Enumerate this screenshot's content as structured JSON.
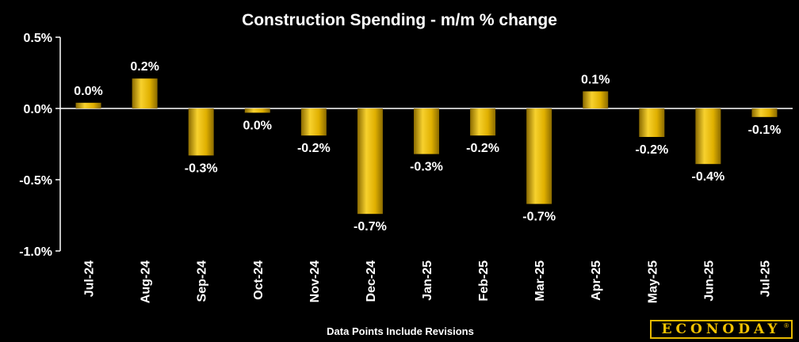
{
  "chart_data": {
    "type": "bar",
    "title": "Construction Spending - m/m % change",
    "categories": [
      "Jul-24",
      "Aug-24",
      "Sep-24",
      "Oct-24",
      "Nov-24",
      "Dec-24",
      "Jan-25",
      "Feb-25",
      "Mar-25",
      "Apr-25",
      "May-25",
      "Jun-25",
      "Jul-25"
    ],
    "values": [
      0.04,
      0.21,
      -0.33,
      -0.03,
      -0.19,
      -0.74,
      -0.32,
      -0.19,
      -0.67,
      0.12,
      -0.2,
      -0.39,
      -0.06
    ],
    "data_labels": [
      "0.0%",
      "0.2%",
      "-0.3%",
      "0.0%",
      "-0.2%",
      "-0.7%",
      "-0.3%",
      "-0.2%",
      "-0.7%",
      "0.1%",
      "-0.2%",
      "-0.4%",
      "-0.1%"
    ],
    "ylim": [
      -1.0,
      0.5
    ],
    "yticks": [
      0.5,
      0.0,
      -0.5,
      -1.0
    ],
    "ytick_labels": [
      "0.5%",
      "0.0%",
      "-0.5%",
      "-1.0%"
    ],
    "xlabel": "",
    "ylabel": "",
    "grid": false,
    "bar_color": "#f2c200",
    "bar_color_dark": "#b38a00",
    "background": "#000000"
  },
  "footnote": "Data Points Include Revisions",
  "logo": {
    "text": "ECONODAY",
    "mark": "®"
  }
}
